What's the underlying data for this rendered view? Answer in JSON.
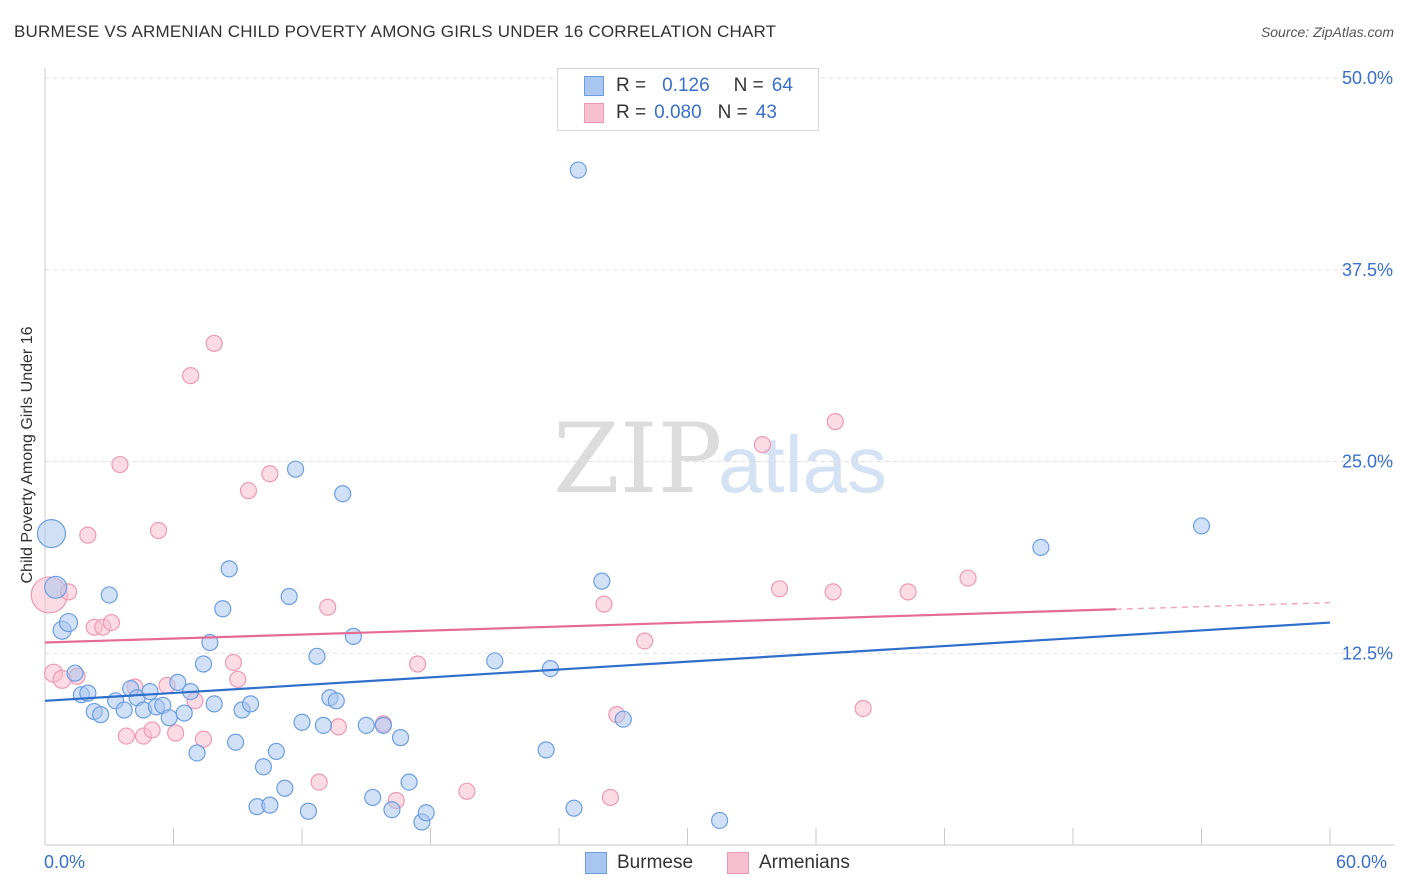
{
  "header": {
    "title": "BURMESE VS ARMENIAN CHILD POVERTY AMONG GIRLS UNDER 16 CORRELATION CHART",
    "source": "Source: ZipAtlas.com"
  },
  "watermark": {
    "zip": "ZIP",
    "atlas": "atlas"
  },
  "legend": {
    "rows": [
      {
        "r_label": "R =",
        "r_value": "0.126",
        "n_label": "N =",
        "n_value": "64"
      },
      {
        "r_label": "R =",
        "r_value": "0.080",
        "n_label": "N =",
        "n_value": "43"
      }
    ]
  },
  "bottom_legend": {
    "items": [
      "Burmese",
      "Armenians"
    ]
  },
  "colors": {
    "burmese_fill": "#a9c6f0",
    "burmese_stroke": "#6d9ee0",
    "burmese_line": "#2f6fcc",
    "armenian_fill": "#f7bfd0",
    "armenian_stroke": "#ec9ab4",
    "armenian_line": "#e56b95",
    "tick_label": "#3a6fcc",
    "grid": "#dddddd"
  },
  "chart_data": {
    "type": "scatter",
    "title": "BURMESE VS ARMENIAN CHILD POVERTY AMONG GIRLS UNDER 16 CORRELATION CHART",
    "xlabel": "",
    "ylabel": "Child Poverty Among Girls Under 16",
    "xlim": [
      0,
      60
    ],
    "ylim": [
      0,
      50
    ],
    "x_tick_labels": [
      "0.0%",
      "60.0%"
    ],
    "y_ticks": [
      12.5,
      25,
      37.5,
      50
    ],
    "y_tick_labels": [
      "12.5%",
      "25.0%",
      "37.5%",
      "50.0%"
    ],
    "grid": "horizontal dashed",
    "legend_position": "top-center",
    "series": [
      {
        "name": "Burmese",
        "r": 0.126,
        "n": 64,
        "trend": {
          "x": [
            0,
            60
          ],
          "y": [
            9.4,
            14.5
          ],
          "dashed_from": null
        },
        "points": [
          [
            0.3,
            20.3,
            28
          ],
          [
            0.5,
            16.8,
            22
          ],
          [
            0.8,
            14.0,
            18
          ],
          [
            1.1,
            14.5,
            18
          ],
          [
            1.4,
            11.2,
            16
          ],
          [
            1.7,
            9.8,
            16
          ],
          [
            2.0,
            9.9,
            16
          ],
          [
            2.3,
            8.7,
            16
          ],
          [
            2.6,
            8.5,
            16
          ],
          [
            3.0,
            16.3,
            16
          ],
          [
            3.3,
            9.4,
            16
          ],
          [
            3.7,
            8.8,
            16
          ],
          [
            4.0,
            10.2,
            16
          ],
          [
            4.3,
            9.6,
            16
          ],
          [
            4.6,
            8.8,
            16
          ],
          [
            4.9,
            10.0,
            16
          ],
          [
            5.2,
            9.0,
            16
          ],
          [
            5.5,
            9.1,
            16
          ],
          [
            5.8,
            8.3,
            16
          ],
          [
            6.2,
            10.6,
            16
          ],
          [
            6.5,
            8.6,
            16
          ],
          [
            6.8,
            10.0,
            16
          ],
          [
            7.1,
            6.0,
            16
          ],
          [
            7.4,
            11.8,
            16
          ],
          [
            7.7,
            13.2,
            16
          ],
          [
            7.9,
            9.2,
            16
          ],
          [
            8.3,
            15.4,
            16
          ],
          [
            8.6,
            18.0,
            16
          ],
          [
            8.9,
            6.7,
            16
          ],
          [
            9.2,
            8.8,
            16
          ],
          [
            9.6,
            9.2,
            16
          ],
          [
            9.9,
            2.5,
            16
          ],
          [
            10.2,
            5.1,
            16
          ],
          [
            10.5,
            2.6,
            16
          ],
          [
            10.8,
            6.1,
            16
          ],
          [
            11.2,
            3.7,
            16
          ],
          [
            11.4,
            16.2,
            16
          ],
          [
            11.7,
            24.5,
            16
          ],
          [
            12.0,
            8.0,
            16
          ],
          [
            12.3,
            2.2,
            16
          ],
          [
            12.7,
            12.3,
            16
          ],
          [
            13.0,
            7.8,
            16
          ],
          [
            13.3,
            9.6,
            16
          ],
          [
            13.6,
            9.4,
            16
          ],
          [
            13.9,
            22.9,
            16
          ],
          [
            14.4,
            13.6,
            16
          ],
          [
            15.0,
            7.8,
            16
          ],
          [
            15.3,
            3.1,
            16
          ],
          [
            15.8,
            7.8,
            16
          ],
          [
            16.2,
            2.3,
            16
          ],
          [
            16.6,
            7.0,
            16
          ],
          [
            17.0,
            4.1,
            16
          ],
          [
            17.6,
            1.5,
            16
          ],
          [
            17.8,
            2.1,
            16
          ],
          [
            21.0,
            12.0,
            16
          ],
          [
            23.4,
            6.2,
            16
          ],
          [
            23.6,
            11.5,
            16
          ],
          [
            24.7,
            2.4,
            16
          ],
          [
            24.9,
            44.0,
            16
          ],
          [
            26.0,
            17.2,
            16
          ],
          [
            27.0,
            8.2,
            16
          ],
          [
            31.5,
            1.6,
            16
          ],
          [
            46.5,
            19.4,
            16
          ],
          [
            54.0,
            20.8,
            16
          ]
        ]
      },
      {
        "name": "Armenians",
        "r": 0.08,
        "n": 43,
        "trend": {
          "x": [
            0,
            60
          ],
          "y": [
            13.2,
            15.8
          ],
          "dashed_from": 50
        },
        "points": [
          [
            0.2,
            16.3,
            36
          ],
          [
            0.4,
            11.2,
            18
          ],
          [
            0.8,
            10.8,
            18
          ],
          [
            1.1,
            16.5,
            16
          ],
          [
            1.5,
            11.0,
            16
          ],
          [
            2.0,
            20.2,
            16
          ],
          [
            2.3,
            14.2,
            16
          ],
          [
            2.7,
            14.2,
            16
          ],
          [
            3.1,
            14.5,
            16
          ],
          [
            3.5,
            24.8,
            16
          ],
          [
            3.8,
            7.1,
            16
          ],
          [
            4.2,
            10.3,
            16
          ],
          [
            4.6,
            7.1,
            16
          ],
          [
            5.0,
            7.5,
            16
          ],
          [
            5.3,
            20.5,
            16
          ],
          [
            5.7,
            10.4,
            16
          ],
          [
            6.1,
            7.3,
            16
          ],
          [
            6.8,
            30.6,
            16
          ],
          [
            7.0,
            9.4,
            16
          ],
          [
            7.4,
            6.9,
            16
          ],
          [
            7.9,
            32.7,
            16
          ],
          [
            8.8,
            11.9,
            16
          ],
          [
            9.0,
            10.8,
            16
          ],
          [
            9.5,
            23.1,
            16
          ],
          [
            10.5,
            24.2,
            16
          ],
          [
            12.8,
            4.1,
            16
          ],
          [
            13.2,
            15.5,
            16
          ],
          [
            13.7,
            7.7,
            16
          ],
          [
            15.8,
            7.9,
            16
          ],
          [
            16.4,
            2.9,
            16
          ],
          [
            17.4,
            11.8,
            16
          ],
          [
            19.7,
            3.5,
            16
          ],
          [
            26.1,
            15.7,
            16
          ],
          [
            26.4,
            3.1,
            16
          ],
          [
            26.7,
            8.5,
            16
          ],
          [
            28.0,
            13.3,
            16
          ],
          [
            33.5,
            26.1,
            16
          ],
          [
            34.3,
            16.7,
            16
          ],
          [
            36.9,
            27.6,
            16
          ],
          [
            36.8,
            16.5,
            16
          ],
          [
            38.2,
            8.9,
            16
          ],
          [
            40.3,
            16.5,
            16
          ],
          [
            43.1,
            17.4,
            16
          ]
        ]
      }
    ]
  }
}
